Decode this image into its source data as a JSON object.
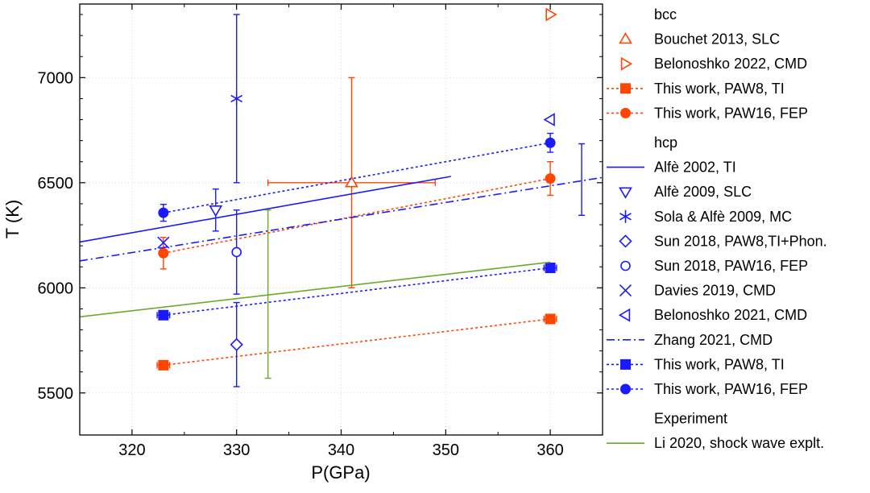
{
  "chart_data": {
    "type": "scatter",
    "xlabel": "P(GPa)",
    "ylabel": "T  (K)",
    "xlim": [
      315,
      365
    ],
    "ylim": [
      5300,
      7350
    ],
    "xticks": [
      320,
      330,
      340,
      350,
      360
    ],
    "yticks": [
      5500,
      6000,
      6500,
      7000
    ],
    "grid": true,
    "legend_position": "right-outside",
    "colors": {
      "bcc": "#ff4500",
      "hcp": "#1a1aff",
      "exp": "#6aaa2a",
      "axis": "#000000",
      "grid": "#d9d9d9"
    },
    "legend_groups": [
      "bcc",
      "hcp",
      "Experiment"
    ],
    "series": [
      {
        "key": "bouchet2013",
        "group": "bcc",
        "name": "Bouchet 2013, SLC",
        "color": "#ff4500",
        "marker": "triangle-up",
        "line": "none",
        "points": [
          {
            "x": 341,
            "y": 6500,
            "xerr": 8,
            "yerr": 500
          }
        ]
      },
      {
        "key": "belonoshko2022",
        "group": "bcc",
        "name": "Belonoshko 2022, CMD",
        "color": "#ff4500",
        "marker": "triangle-right",
        "line": "none",
        "points": [
          {
            "x": 360,
            "y": 7300
          }
        ]
      },
      {
        "key": "bcc_paw8_ti",
        "group": "bcc",
        "name": "This work, PAW8, TI",
        "color": "#ff4500",
        "marker": "square",
        "line": "dotted",
        "points": [
          {
            "x": 323,
            "y": 5632,
            "xerr": 0.6,
            "yerr": 12
          },
          {
            "x": 360,
            "y": 5852,
            "xerr": 0.6,
            "yerr": 12
          }
        ]
      },
      {
        "key": "bcc_paw16_fep",
        "group": "bcc",
        "name": "This work, PAW16, FEP",
        "color": "#ff4500",
        "marker": "circle",
        "line": "dotted",
        "points": [
          {
            "x": 323,
            "y": 6165,
            "yerr": 75
          },
          {
            "x": 360,
            "y": 6520,
            "yerr": 80
          }
        ]
      },
      {
        "key": "alfe2002",
        "group": "hcp",
        "name": "Alfè 2002, TI",
        "color": "#1a1aff",
        "marker": "none",
        "line": "solid",
        "points": [
          {
            "x": 315,
            "y": 6218
          },
          {
            "x": 350.5,
            "y": 6530
          }
        ]
      },
      {
        "key": "alfe2009",
        "group": "hcp",
        "name": "Alfè 2009, SLC",
        "color": "#1a1aff",
        "marker": "triangle-down",
        "line": "none",
        "points": [
          {
            "x": 328,
            "y": 6370,
            "yerr": 100
          }
        ]
      },
      {
        "key": "sola2009",
        "group": "hcp",
        "name": "Sola & Alfè 2009, MC",
        "color": "#1a1aff",
        "marker": "asterisk",
        "line": "none",
        "points": [
          {
            "x": 330,
            "y": 6900,
            "yerr": 400
          }
        ]
      },
      {
        "key": "sun2018_paw8",
        "group": "hcp",
        "name": "Sun 2018, PAW8,TI+Phon.",
        "color": "#1a1aff",
        "marker": "diamond",
        "line": "none",
        "points": [
          {
            "x": 330,
            "y": 5730,
            "yerr": 200
          }
        ]
      },
      {
        "key": "sun2018_paw16",
        "group": "hcp",
        "name": "Sun 2018, PAW16, FEP",
        "color": "#1a1aff",
        "marker": "open-circle",
        "line": "none",
        "points": [
          {
            "x": 330,
            "y": 6170,
            "yerr": 200
          }
        ]
      },
      {
        "key": "davies2019",
        "group": "hcp",
        "name": "Davies 2019, CMD",
        "color": "#1a1aff",
        "marker": "x",
        "line": "none",
        "points": [
          {
            "x": 323,
            "y": 6215
          }
        ]
      },
      {
        "key": "belonoshko2021",
        "group": "hcp",
        "name": "Belonoshko 2021, CMD",
        "color": "#1a1aff",
        "marker": "triangle-left",
        "line": "none",
        "points": [
          {
            "x": 360,
            "y": 6800
          },
          {
            "x": 363,
            "y": 6515,
            "yerr": 170
          }
        ]
      },
      {
        "key": "zhang2021",
        "group": "hcp",
        "name": "Zhang 2021, CMD",
        "color": "#1a1aff",
        "marker": "none",
        "line": "dashdot",
        "points": [
          {
            "x": 315,
            "y": 6128
          },
          {
            "x": 365,
            "y": 6525
          }
        ]
      },
      {
        "key": "hcp_paw8_ti",
        "group": "hcp",
        "name": "This work, PAW8, TI",
        "color": "#1a1aff",
        "marker": "square",
        "line": "dotted",
        "points": [
          {
            "x": 323,
            "y": 5870,
            "xerr": 0.6,
            "yerr": 12
          },
          {
            "x": 360,
            "y": 6095,
            "xerr": 0.6,
            "yerr": 12
          }
        ]
      },
      {
        "key": "hcp_paw16_fep",
        "group": "hcp",
        "name": "This work, PAW16, FEP",
        "color": "#1a1aff",
        "marker": "circle",
        "line": "dotted",
        "points": [
          {
            "x": 323,
            "y": 6357,
            "yerr": 40
          },
          {
            "x": 360,
            "y": 6690,
            "yerr": 45
          }
        ]
      },
      {
        "key": "li2020",
        "group": "Experiment",
        "name": "Li 2020, shock wave explt.",
        "color": "#6aaa2a",
        "marker": "none",
        "line": "solid",
        "points": [
          {
            "x": 315,
            "y": 5862
          },
          {
            "x": 360,
            "y": 6122
          },
          {
            "x": 333,
            "y": 5970,
            "yerr": 400
          }
        ]
      }
    ]
  }
}
